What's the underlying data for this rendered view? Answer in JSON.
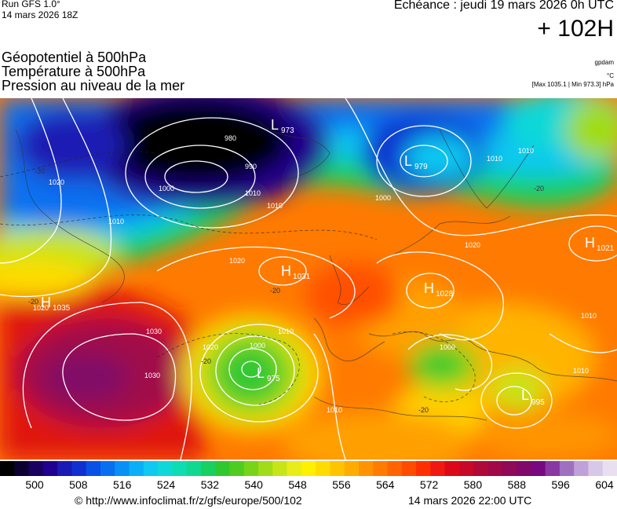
{
  "header": {
    "run_line1": "Run GFS 1.0°",
    "run_line2": "14 mars 2026 18Z",
    "echeance": "Echéance : jeudi 19 mars 2026 0h UTC",
    "lead_time": "+ 102H"
  },
  "layers": {
    "line1": "Géopotentiel à 500hPa",
    "line2": "Température à 500hPa",
    "line3": "Pression au niveau de la mer"
  },
  "units": {
    "geopotential": "gpdam",
    "temperature": "°C",
    "pressure_range": "[Max 1035.1 | Min 973.3] hPa"
  },
  "pressure_centers": [
    {
      "type": "L",
      "value": "973"
    },
    {
      "type": "L",
      "value": "979"
    },
    {
      "type": "H",
      "value": "1031"
    },
    {
      "type": "H",
      "value": "1035"
    },
    {
      "type": "H",
      "value": "1028"
    },
    {
      "type": "H",
      "value": "1021"
    },
    {
      "type": "L",
      "value": "975"
    },
    {
      "type": "L",
      "value": "995"
    }
  ],
  "isobar_labels": [
    "980",
    "990",
    "1000",
    "1010",
    "1020",
    "1030",
    "1000",
    "1010",
    "1020",
    "1010",
    "1010",
    "1020",
    "1000",
    "1010",
    "1020",
    "1010",
    "1010",
    "1030",
    "1020",
    "1010",
    "1000",
    "1010"
  ],
  "temperature_labels": [
    "-30",
    "-20",
    "-20",
    "-20",
    "-20",
    "-20"
  ],
  "colorbar": {
    "ticks": [
      "500",
      "508",
      "516",
      "524",
      "532",
      "540",
      "548",
      "556",
      "564",
      "572",
      "580",
      "588",
      "596",
      "604"
    ],
    "colors": [
      "#000000",
      "#0b0030",
      "#1a0060",
      "#200090",
      "#1a1ab4",
      "#1030d0",
      "#0a50e6",
      "#0870f0",
      "#0890f5",
      "#0aaff8",
      "#10c8f0",
      "#10d8d8",
      "#10dcb4",
      "#10d890",
      "#18d060",
      "#30c830",
      "#50cc20",
      "#78d418",
      "#a0dc18",
      "#c8e418",
      "#e8ec18",
      "#fff000",
      "#ffdc00",
      "#ffc400",
      "#ffac00",
      "#ff9400",
      "#ff7c00",
      "#ff6400",
      "#ff4c00",
      "#ff3000",
      "#f01810",
      "#dc0818",
      "#c80828",
      "#b00838",
      "#a00848",
      "#900858",
      "#800868",
      "#780880",
      "#8838a0",
      "#a070c0",
      "#c0a0d8",
      "#d8c8e8",
      "#e8e0f0"
    ]
  },
  "footer": {
    "url": "© http://www.infoclimat.fr/z/gfs/europe/500/102",
    "issued": "14 mars 2026 22:00 UTC"
  }
}
